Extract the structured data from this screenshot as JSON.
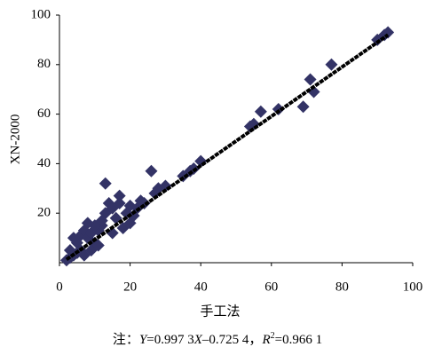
{
  "chart_data": {
    "type": "scatter",
    "x_label": "手工法",
    "y_label": "XN-2000",
    "note_parts": [
      "注：",
      "Y",
      "=0.997 3",
      "X",
      "–0.725 4，",
      "R",
      "2",
      "=0.966 1"
    ],
    "xlim": [
      0,
      100
    ],
    "ylim": [
      0,
      100
    ],
    "xticks": [
      0,
      20,
      40,
      60,
      80,
      100
    ],
    "yticks": [
      20,
      40,
      60,
      80,
      100
    ],
    "series": [
      {
        "name": "XN-2000",
        "color": "#333366",
        "x": [
          2,
          3,
          4,
          5,
          6,
          3,
          5,
          6,
          7,
          8,
          9,
          10,
          11,
          12,
          13,
          13,
          14,
          15,
          16,
          17,
          18,
          19,
          20,
          21,
          22,
          24,
          26,
          27,
          28,
          30,
          35,
          37,
          38,
          40,
          54,
          55,
          57,
          62,
          69,
          71,
          72,
          77,
          90,
          92,
          93,
          7,
          9,
          11,
          4,
          15,
          12,
          10,
          8,
          17,
          23,
          20
        ],
        "values": [
          1,
          2,
          3,
          4,
          5,
          5,
          8,
          11,
          13,
          10,
          12,
          8,
          13,
          15,
          20,
          32,
          24,
          22,
          18,
          24,
          14,
          20,
          16,
          19,
          22,
          24,
          37,
          28,
          30,
          31,
          35,
          37,
          38,
          41,
          55,
          56,
          61,
          62,
          63,
          74,
          69,
          80,
          90,
          92,
          93,
          3,
          5,
          7,
          10,
          12,
          17,
          15,
          16,
          27,
          25,
          23
        ]
      }
    ],
    "fit_line": {
      "color": "#000000",
      "x": [
        2,
        93
      ],
      "values": [
        1.3,
        92
      ]
    }
  }
}
